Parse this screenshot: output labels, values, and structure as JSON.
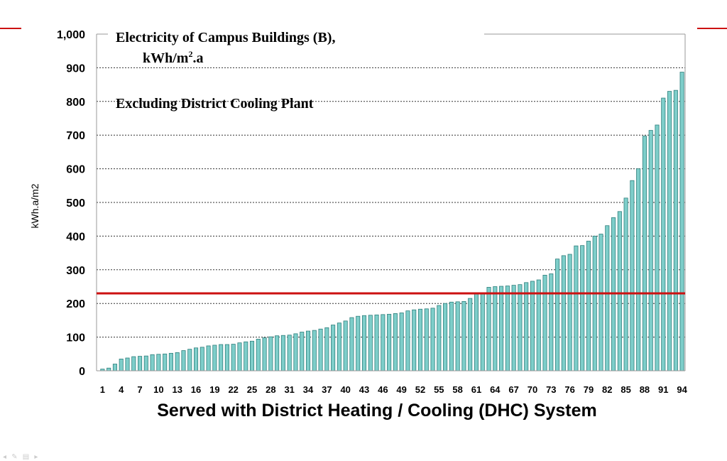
{
  "chart_data": {
    "type": "bar",
    "title_line1": "Electricity of Campus Buildings (B),",
    "title_line2_base": "kWh/m",
    "title_line2_sup": "2",
    "title_line2_tail": ".a",
    "subtitle": "Excluding District Cooling Plant",
    "xlabel": "Served with District Heating / Cooling (DHC) System",
    "ylabel": "kWh.a/m2",
    "ylim": [
      0,
      1000
    ],
    "yticks": [
      0,
      100,
      200,
      300,
      400,
      500,
      600,
      700,
      800,
      900,
      1000
    ],
    "ytick_labels": [
      "0",
      "100",
      "200",
      "300",
      "400",
      "500",
      "600",
      "700",
      "800",
      "900",
      "1,000"
    ],
    "xtick_labels": [
      "1",
      "4",
      "7",
      "10",
      "13",
      "16",
      "19",
      "22",
      "25",
      "28",
      "31",
      "34",
      "37",
      "40",
      "43",
      "46",
      "49",
      "52",
      "55",
      "58",
      "61",
      "64",
      "67",
      "70",
      "73",
      "76",
      "79",
      "82",
      "85",
      "88",
      "91",
      "94"
    ],
    "grid": true,
    "reference_line": 230,
    "values": [
      5,
      8,
      20,
      35,
      38,
      42,
      43,
      44,
      48,
      49,
      50,
      52,
      54,
      60,
      64,
      68,
      70,
      74,
      76,
      78,
      78,
      79,
      83,
      86,
      88,
      94,
      98,
      101,
      104,
      105,
      106,
      110,
      115,
      118,
      120,
      124,
      128,
      136,
      142,
      148,
      158,
      162,
      164,
      165,
      166,
      167,
      168,
      170,
      172,
      178,
      181,
      183,
      184,
      186,
      194,
      200,
      204,
      205,
      206,
      215,
      228,
      232,
      248,
      250,
      251,
      252,
      254,
      256,
      262,
      266,
      270,
      284,
      288,
      332,
      342,
      346,
      371,
      372,
      385,
      400,
      406,
      431,
      455,
      473,
      513,
      565,
      600,
      697,
      714,
      730,
      810,
      830,
      833,
      887
    ]
  },
  "colors": {
    "bar_fill": "#7ececa",
    "bar_dark": "#2f7f7c",
    "reference_line": "#cc1111",
    "grid": "#333333"
  },
  "toolbar_glyphs": "◂ ✎ ▤ ▸"
}
